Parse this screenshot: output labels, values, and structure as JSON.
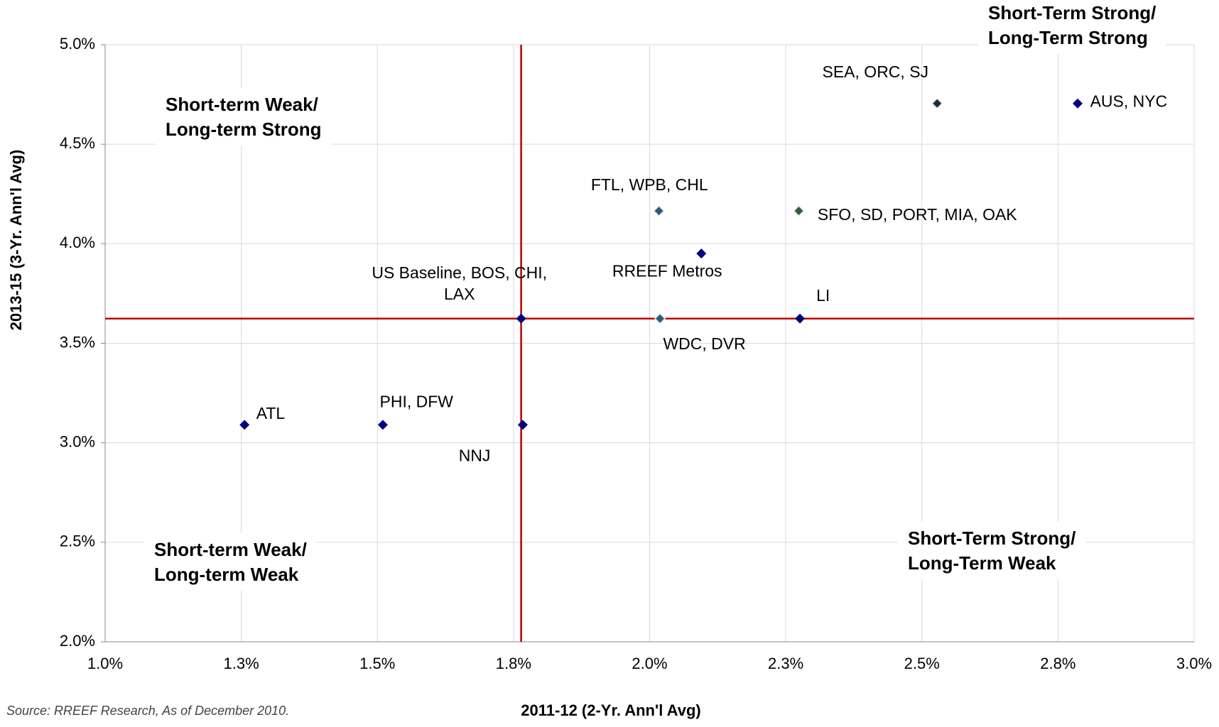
{
  "chart_data": {
    "type": "scatter",
    "x_label": "2011-12  (2-Yr. Ann'l Avg)",
    "y_label": "2013-15 (3-Yr. Ann'l Avg)",
    "source": "Source: RREEF Research, As of December 2010.",
    "xlim": [
      1.0,
      3.0
    ],
    "xticks": [
      {
        "value": 1.0,
        "label": "1.0%"
      },
      {
        "value": 1.25,
        "label": "1.3%"
      },
      {
        "value": 1.5,
        "label": "1.5%"
      },
      {
        "value": 1.75,
        "label": "1.8%"
      },
      {
        "value": 2.0,
        "label": "2.0%"
      },
      {
        "value": 2.25,
        "label": "2.3%"
      },
      {
        "value": 2.5,
        "label": "2.5%"
      },
      {
        "value": 2.75,
        "label": "2.8%"
      },
      {
        "value": 3.0,
        "label": "3.0%"
      }
    ],
    "ylim": [
      2.0,
      5.0
    ],
    "yticks": [
      {
        "value": 2.0,
        "label": "2.0%"
      },
      {
        "value": 2.5,
        "label": "2.5%"
      },
      {
        "value": 3.0,
        "label": "3.0%"
      },
      {
        "value": 3.5,
        "label": "3.5%"
      },
      {
        "value": 4.0,
        "label": "4.0%"
      },
      {
        "value": 4.5,
        "label": "4.5%"
      },
      {
        "value": 5.0,
        "label": "5.0%"
      }
    ],
    "grid": true,
    "reference_lines": {
      "x": 1.764,
      "y": 3.624,
      "color": "#c00000"
    },
    "points": [
      {
        "label": [
          "ATL"
        ],
        "x": 1.256,
        "y": 3.09,
        "color": "#000080"
      },
      {
        "label": [
          "PHI, DFW"
        ],
        "x": 1.51,
        "y": 3.09,
        "color": "#000080"
      },
      {
        "label": [
          "NNJ"
        ],
        "x": 1.767,
        "y": 3.09,
        "color": "#000080"
      },
      {
        "label": [
          "US Baseline, BOS, CHI,",
          "LAX"
        ],
        "x": 1.764,
        "y": 3.624,
        "color": "#000080"
      },
      {
        "label": [
          "WDC, DVR"
        ],
        "x": 2.019,
        "y": 3.624,
        "color": "#2e5a7a"
      },
      {
        "label": [
          "LI"
        ],
        "x": 2.276,
        "y": 3.624,
        "color": "#000080"
      },
      {
        "label": [
          "RREEF Metros"
        ],
        "x": 2.095,
        "y": 3.951,
        "color": "#000080"
      },
      {
        "label": [
          "FTL, WPB, CHL"
        ],
        "x": 2.017,
        "y": 4.165,
        "color": "#2e5a7a"
      },
      {
        "label": [
          "SFO, SD, PORT, MIA, OAK"
        ],
        "x": 2.274,
        "y": 4.165,
        "color": "#2f5e3a"
      },
      {
        "label": [
          "SEA, ORC, SJ"
        ],
        "x": 2.528,
        "y": 4.705,
        "color": "#1f2d3d"
      },
      {
        "label": [
          "AUS, NYC"
        ],
        "x": 2.786,
        "y": 4.705,
        "color": "#000080"
      }
    ],
    "quadrants": [
      [
        "Short-term Weak/",
        "Long-term Strong"
      ],
      [
        "Short-term Weak/",
        "Long-term Weak"
      ],
      [
        "Short-Term Strong/",
        "Long-Term Weak"
      ],
      [
        "Short-Term Strong/",
        "Long-Term Strong"
      ]
    ]
  }
}
